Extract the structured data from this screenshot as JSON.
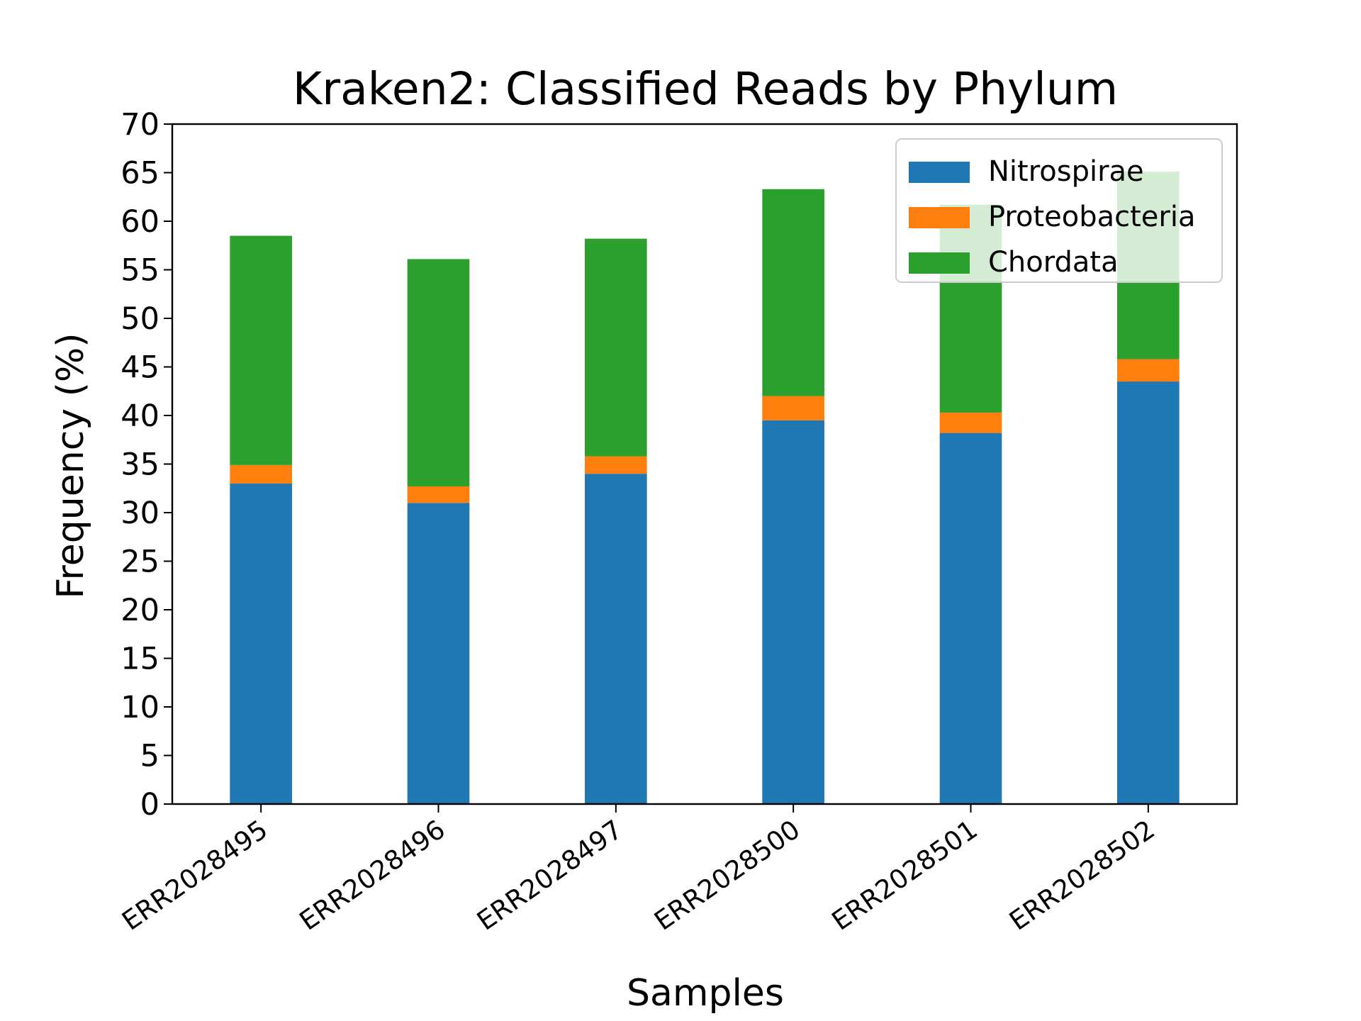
{
  "chart_data": {
    "type": "bar",
    "stacked": true,
    "title": "Kraken2: Classified Reads by Phylum",
    "xlabel": "Samples",
    "ylabel": "Frequency (%)",
    "ylim": [
      0,
      70
    ],
    "yticks": [
      0,
      5,
      10,
      15,
      20,
      25,
      30,
      35,
      40,
      45,
      50,
      55,
      60,
      65,
      70
    ],
    "categories": [
      "ERR2028495",
      "ERR2028496",
      "ERR2028497",
      "ERR2028500",
      "ERR2028501",
      "ERR2028502"
    ],
    "series": [
      {
        "name": "Nitrospirae",
        "color": "#1f77b4",
        "values": [
          33.0,
          31.0,
          34.0,
          39.5,
          38.2,
          43.5
        ]
      },
      {
        "name": "Proteobacteria",
        "color": "#ff7f0e",
        "values": [
          1.9,
          1.7,
          1.8,
          2.5,
          2.1,
          2.3
        ]
      },
      {
        "name": "Chordata",
        "color": "#2ca02c",
        "values": [
          23.6,
          23.4,
          22.4,
          21.3,
          21.4,
          19.3
        ]
      }
    ],
    "legend_position": "top-right",
    "grid": false
  }
}
